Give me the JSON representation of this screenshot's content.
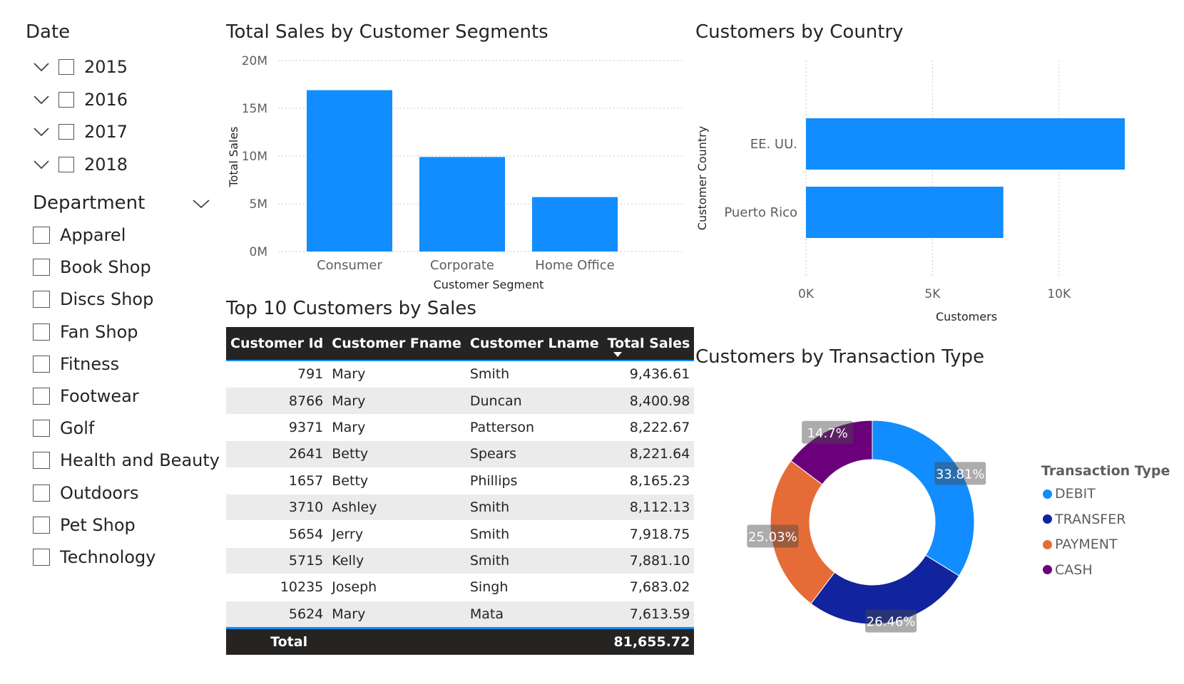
{
  "date_slicer": {
    "title": "Date",
    "years": [
      "2015",
      "2016",
      "2017",
      "2018"
    ]
  },
  "department_slicer": {
    "title": "Department",
    "items": [
      "Apparel",
      "Book Shop",
      "Discs Shop",
      "Fan Shop",
      "Fitness",
      "Footwear",
      "Golf",
      "Health and Beauty",
      "Outdoors",
      "Pet Shop",
      "Technology"
    ]
  },
  "segments_chart": {
    "title": "Total Sales by Customer Segments",
    "chart_data": {
      "type": "bar",
      "categories": [
        "Consumer",
        "Corporate",
        "Home Office"
      ],
      "values": [
        16.9,
        9.9,
        5.7
      ],
      "units": "M",
      "ylim": [
        0,
        20
      ],
      "yticks": [
        "0M",
        "5M",
        "10M",
        "15M",
        "20M"
      ],
      "xlabel": "Customer Segment",
      "ylabel": "Total Sales"
    }
  },
  "country_chart": {
    "title": "Customers by Country",
    "chart_data": {
      "type": "bar",
      "orientation": "horizontal",
      "categories": [
        "EE. UU.",
        "Puerto Rico"
      ],
      "values": [
        12600,
        7800
      ],
      "xlim": [
        0,
        12600
      ],
      "xticks": [
        "0K",
        "5K",
        "10K"
      ],
      "xlabel": "Customers",
      "ylabel": "Customer Country"
    }
  },
  "top_customers": {
    "title": "Top 10 Customers by Sales",
    "columns": [
      "Customer Id",
      "Customer Fname",
      "Customer Lname",
      "Total Sales"
    ],
    "rows": [
      [
        "791",
        "Mary",
        "Smith",
        "9,436.61"
      ],
      [
        "8766",
        "Mary",
        "Duncan",
        "8,400.98"
      ],
      [
        "9371",
        "Mary",
        "Patterson",
        "8,222.67"
      ],
      [
        "2641",
        "Betty",
        "Spears",
        "8,221.64"
      ],
      [
        "1657",
        "Betty",
        "Phillips",
        "8,165.23"
      ],
      [
        "3710",
        "Ashley",
        "Smith",
        "8,112.13"
      ],
      [
        "5654",
        "Jerry",
        "Smith",
        "7,918.75"
      ],
      [
        "5715",
        "Kelly",
        "Smith",
        "7,881.10"
      ],
      [
        "10235",
        "Joseph",
        "Singh",
        "7,683.02"
      ],
      [
        "5624",
        "Mary",
        "Mata",
        "7,613.59"
      ]
    ],
    "total_label": "Total",
    "total_value": "81,655.72"
  },
  "transaction_chart": {
    "title": "Customers by Transaction Type",
    "legend_title": "Transaction Type",
    "chart_data": {
      "type": "pie",
      "variant": "donut",
      "labels": [
        "DEBIT",
        "TRANSFER",
        "PAYMENT",
        "CASH"
      ],
      "values": [
        33.81,
        26.46,
        25.03,
        14.7
      ],
      "display_labels": [
        "33.81%",
        "26.46%",
        "25.03%",
        "14.7%"
      ],
      "colors": [
        "#118dff",
        "#12239e",
        "#e66c37",
        "#6b007b"
      ]
    }
  },
  "colors": {
    "accent": "#118dff",
    "header": "#252423"
  }
}
